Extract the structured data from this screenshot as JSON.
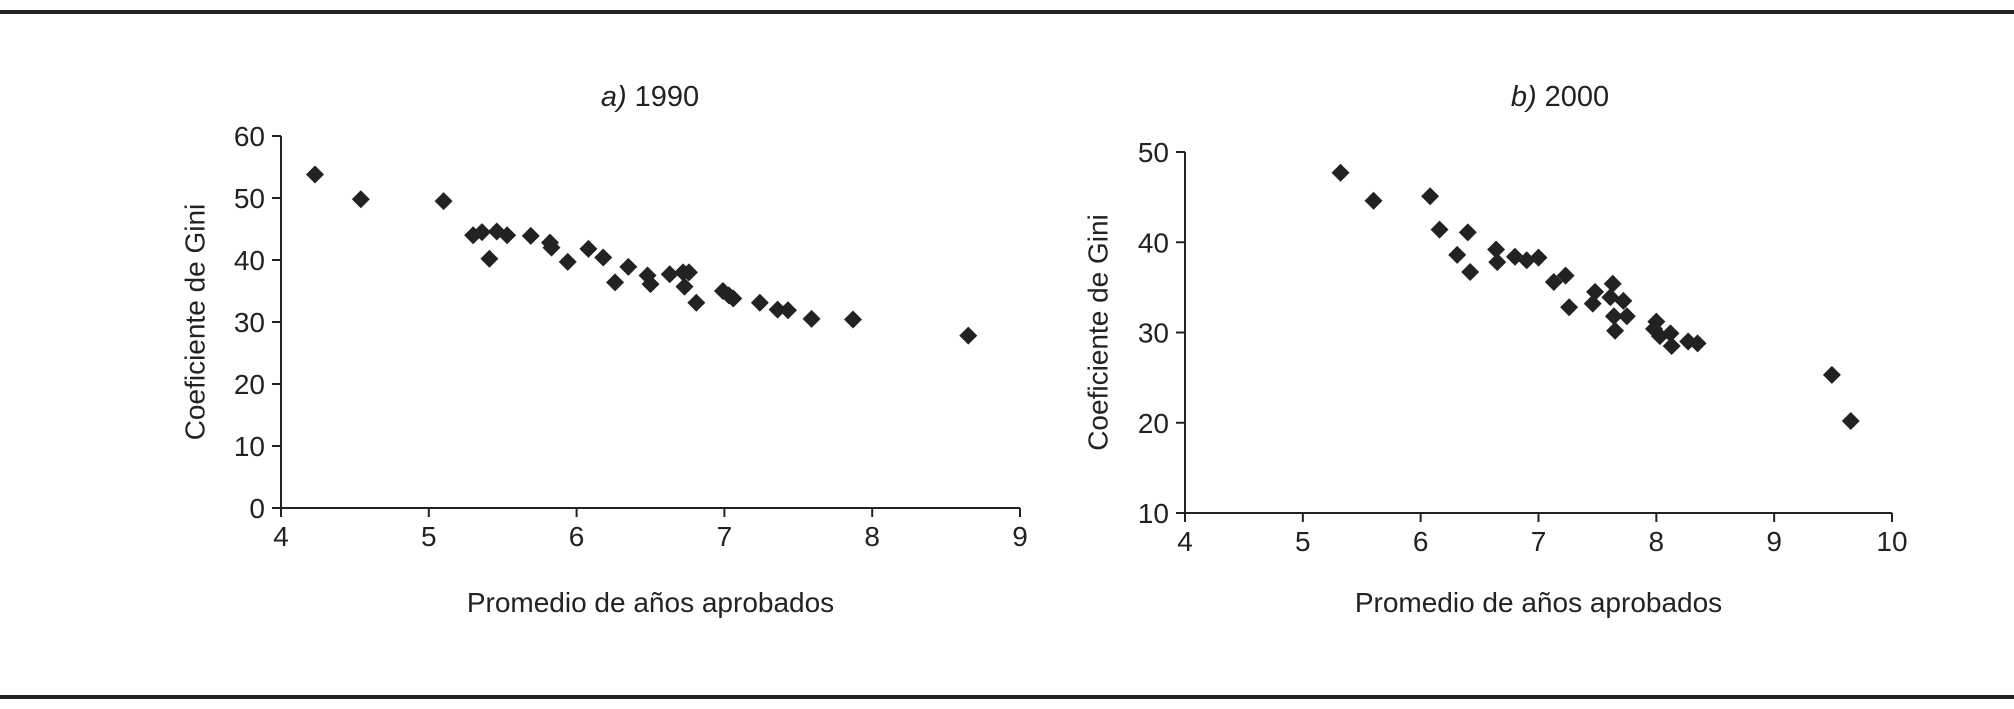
{
  "chart_data": [
    {
      "type": "scatter",
      "panel": "a)",
      "title": "1990",
      "xlabel": "Promedio de años aprobados",
      "ylabel": "Coeficiente de Gini",
      "xlim": [
        4,
        9
      ],
      "ylim": [
        0,
        60
      ],
      "xticks": [
        4,
        5,
        6,
        7,
        8,
        9
      ],
      "yticks": [
        0,
        10,
        20,
        30,
        40,
        50,
        60
      ],
      "grid": false,
      "marker": "diamond",
      "x": [
        4.23,
        4.54,
        5.1,
        5.3,
        5.36,
        5.41,
        5.46,
        5.53,
        5.69,
        5.82,
        5.83,
        5.94,
        6.08,
        6.18,
        6.26,
        6.35,
        6.48,
        6.5,
        6.63,
        6.72,
        6.73,
        6.76,
        6.81,
        6.99,
        7.03,
        7.06,
        7.24,
        7.36,
        7.43,
        7.59,
        7.87,
        8.65
      ],
      "y": [
        53.8,
        49.8,
        49.5,
        44.0,
        44.5,
        40.2,
        44.6,
        44.0,
        43.9,
        42.8,
        42.0,
        39.7,
        41.8,
        40.4,
        36.4,
        38.9,
        37.5,
        36.1,
        37.7,
        38.0,
        35.7,
        38.0,
        33.1,
        35.0,
        34.3,
        33.8,
        33.1,
        32.0,
        31.9,
        30.5,
        30.4,
        27.8
      ]
    },
    {
      "type": "scatter",
      "panel": "b)",
      "title": "2000",
      "xlabel": "Promedio de años aprobados",
      "ylabel": "Coeficiente de Gini",
      "xlim": [
        4,
        10
      ],
      "ylim": [
        10,
        50
      ],
      "xticks": [
        4,
        5,
        6,
        7,
        8,
        9,
        10
      ],
      "yticks": [
        10,
        20,
        30,
        40,
        50
      ],
      "grid": false,
      "marker": "diamond",
      "x": [
        5.32,
        5.6,
        6.08,
        6.16,
        6.31,
        6.4,
        6.42,
        6.64,
        6.65,
        6.8,
        6.9,
        7.0,
        7.13,
        7.23,
        7.26,
        7.46,
        7.48,
        7.61,
        7.63,
        7.64,
        7.65,
        7.72,
        7.75,
        7.98,
        8.0,
        8.03,
        8.12,
        8.13,
        8.27,
        8.35,
        9.49,
        9.65
      ],
      "y": [
        47.7,
        44.6,
        45.1,
        41.4,
        38.6,
        41.1,
        36.7,
        39.2,
        37.8,
        38.4,
        38.0,
        38.3,
        35.6,
        36.3,
        32.8,
        33.2,
        34.5,
        33.9,
        35.4,
        31.8,
        30.2,
        33.5,
        31.8,
        30.4,
        31.2,
        29.6,
        29.9,
        28.5,
        29.0,
        28.8,
        25.3,
        20.2
      ]
    }
  ]
}
